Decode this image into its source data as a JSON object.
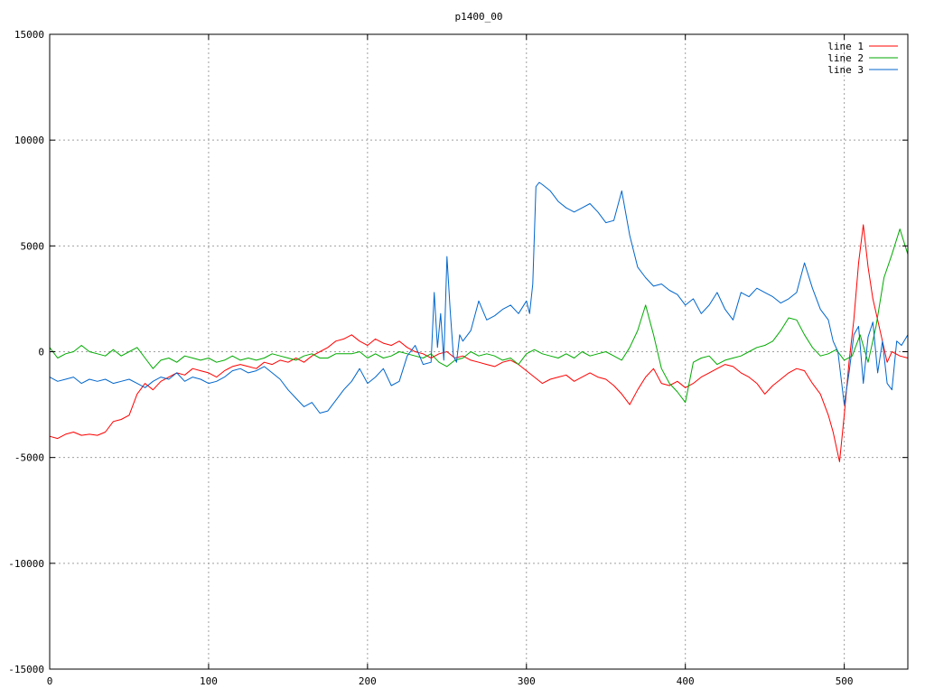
{
  "chart_data": {
    "type": "line",
    "title": "p1400_00",
    "xlabel": "",
    "ylabel": "",
    "xlim": [
      0,
      540
    ],
    "ylim": [
      -15000,
      15000
    ],
    "x_ticks": [
      0,
      100,
      200,
      300,
      400,
      500
    ],
    "y_ticks": [
      -15000,
      -10000,
      -5000,
      0,
      5000,
      10000,
      15000
    ],
    "grid": true,
    "legend_position": "top-right",
    "series": [
      {
        "name": "line 1",
        "color": "#ff0000",
        "x": [
          0,
          5,
          10,
          15,
          20,
          25,
          30,
          35,
          40,
          45,
          50,
          55,
          60,
          65,
          70,
          75,
          80,
          85,
          90,
          95,
          100,
          105,
          110,
          115,
          120,
          125,
          130,
          135,
          140,
          145,
          150,
          155,
          160,
          165,
          170,
          175,
          180,
          185,
          190,
          195,
          200,
          205,
          210,
          215,
          220,
          225,
          230,
          235,
          240,
          245,
          250,
          255,
          260,
          265,
          270,
          275,
          280,
          285,
          290,
          295,
          300,
          305,
          310,
          315,
          320,
          325,
          330,
          335,
          340,
          345,
          350,
          355,
          360,
          365,
          370,
          375,
          380,
          385,
          390,
          395,
          400,
          405,
          410,
          415,
          420,
          425,
          430,
          435,
          440,
          445,
          450,
          455,
          460,
          465,
          470,
          475,
          480,
          485,
          490,
          493,
          497,
          500,
          503,
          506,
          509,
          512,
          515,
          518,
          521,
          524,
          527,
          530,
          535,
          540
        ],
        "y": [
          -4000,
          -4100,
          -3900,
          -3800,
          -3950,
          -3900,
          -3950,
          -3800,
          -3300,
          -3200,
          -3000,
          -2000,
          -1500,
          -1800,
          -1400,
          -1200,
          -1000,
          -1100,
          -800,
          -900,
          -1000,
          -1200,
          -900,
          -700,
          -600,
          -700,
          -800,
          -500,
          -600,
          -400,
          -500,
          -300,
          -500,
          -200,
          0,
          200,
          500,
          600,
          800,
          500,
          300,
          600,
          400,
          300,
          500,
          200,
          0,
          -100,
          -300,
          -100,
          0,
          -300,
          -200,
          -400,
          -500,
          -600,
          -700,
          -500,
          -400,
          -600,
          -900,
          -1200,
          -1500,
          -1300,
          -1200,
          -1100,
          -1400,
          -1200,
          -1000,
          -1200,
          -1300,
          -1600,
          -2000,
          -2500,
          -1800,
          -1200,
          -800,
          -1500,
          -1600,
          -1400,
          -1700,
          -1500,
          -1200,
          -1000,
          -800,
          -600,
          -700,
          -1000,
          -1200,
          -1500,
          -2000,
          -1600,
          -1300,
          -1000,
          -800,
          -900,
          -1500,
          -2000,
          -3000,
          -3800,
          -5200,
          -3000,
          -500,
          1500,
          4200,
          6000,
          4000,
          2500,
          1500,
          500,
          -500,
          0,
          -200,
          -300
        ]
      },
      {
        "name": "line 2",
        "color": "#00aa00",
        "x": [
          0,
          5,
          10,
          15,
          20,
          25,
          30,
          35,
          40,
          45,
          50,
          55,
          60,
          65,
          70,
          75,
          80,
          85,
          90,
          95,
          100,
          105,
          110,
          115,
          120,
          125,
          130,
          135,
          140,
          145,
          150,
          155,
          160,
          165,
          170,
          175,
          180,
          185,
          190,
          195,
          200,
          205,
          210,
          215,
          220,
          225,
          230,
          235,
          240,
          245,
          250,
          255,
          260,
          265,
          270,
          275,
          280,
          285,
          290,
          295,
          300,
          305,
          310,
          315,
          320,
          325,
          330,
          335,
          340,
          345,
          350,
          355,
          360,
          365,
          370,
          375,
          380,
          385,
          390,
          395,
          400,
          405,
          410,
          415,
          420,
          425,
          430,
          435,
          440,
          445,
          450,
          455,
          460,
          465,
          470,
          475,
          480,
          485,
          490,
          495,
          500,
          505,
          510,
          515,
          520,
          525,
          530,
          535,
          540
        ],
        "y": [
          200,
          -300,
          -100,
          0,
          300,
          0,
          -100,
          -200,
          100,
          -200,
          0,
          200,
          -300,
          -800,
          -400,
          -300,
          -500,
          -200,
          -300,
          -400,
          -300,
          -500,
          -400,
          -200,
          -400,
          -300,
          -400,
          -300,
          -100,
          -200,
          -300,
          -400,
          -200,
          -100,
          -300,
          -300,
          -100,
          -100,
          -100,
          0,
          -300,
          -100,
          -300,
          -200,
          0,
          -100,
          -200,
          -300,
          -100,
          -500,
          -700,
          -400,
          -300,
          0,
          -200,
          -100,
          -200,
          -400,
          -300,
          -600,
          -100,
          100,
          -100,
          -200,
          -300,
          -100,
          -300,
          0,
          -200,
          -100,
          0,
          -200,
          -400,
          200,
          1000,
          2200,
          800,
          -800,
          -1500,
          -1900,
          -2400,
          -500,
          -300,
          -200,
          -600,
          -400,
          -300,
          -200,
          0,
          200,
          300,
          500,
          1000,
          1600,
          1500,
          800,
          200,
          -200,
          -100,
          100,
          -400,
          -200,
          800,
          -500,
          1200,
          3500,
          4600,
          5800,
          4600
        ]
      },
      {
        "name": "line 3",
        "color": "#0066cc",
        "x": [
          0,
          5,
          10,
          15,
          20,
          25,
          30,
          35,
          40,
          45,
          50,
          55,
          60,
          65,
          70,
          75,
          80,
          85,
          90,
          95,
          100,
          105,
          110,
          115,
          120,
          125,
          130,
          135,
          140,
          145,
          150,
          155,
          160,
          165,
          170,
          175,
          180,
          185,
          190,
          195,
          200,
          205,
          210,
          215,
          220,
          225,
          230,
          235,
          240,
          242,
          244,
          246,
          248,
          250,
          252,
          254,
          256,
          258,
          260,
          265,
          270,
          275,
          280,
          285,
          290,
          295,
          300,
          302,
          304,
          306,
          308,
          310,
          315,
          320,
          325,
          330,
          335,
          340,
          345,
          350,
          355,
          360,
          365,
          370,
          375,
          380,
          385,
          390,
          395,
          400,
          405,
          410,
          415,
          420,
          425,
          430,
          435,
          440,
          445,
          450,
          455,
          460,
          465,
          470,
          475,
          480,
          485,
          490,
          493,
          496,
          500,
          503,
          506,
          509,
          512,
          515,
          518,
          521,
          524,
          527,
          530,
          533,
          536,
          540
        ],
        "y": [
          -1200,
          -1400,
          -1300,
          -1200,
          -1500,
          -1300,
          -1400,
          -1300,
          -1500,
          -1400,
          -1300,
          -1500,
          -1700,
          -1400,
          -1200,
          -1300,
          -1000,
          -1400,
          -1200,
          -1300,
          -1500,
          -1400,
          -1200,
          -900,
          -800,
          -1000,
          -900,
          -700,
          -1000,
          -1300,
          -1800,
          -2200,
          -2600,
          -2400,
          -2900,
          -2800,
          -2300,
          -1800,
          -1400,
          -800,
          -1500,
          -1200,
          -800,
          -1600,
          -1400,
          -200,
          300,
          -600,
          -500,
          2800,
          200,
          1800,
          -400,
          4500,
          2000,
          -200,
          -500,
          800,
          500,
          1000,
          2400,
          1500,
          1700,
          2000,
          2200,
          1800,
          2400,
          1800,
          3200,
          7800,
          8000,
          7900,
          7600,
          7100,
          6800,
          6600,
          6800,
          7000,
          6600,
          6100,
          6200,
          7600,
          5500,
          4000,
          3500,
          3100,
          3200,
          2900,
          2700,
          2200,
          2500,
          1800,
          2200,
          2800,
          2000,
          1500,
          2800,
          2600,
          3000,
          2800,
          2600,
          2300,
          2500,
          2800,
          4200,
          3000,
          2000,
          1500,
          500,
          0,
          -2500,
          -1000,
          800,
          1200,
          -1500,
          700,
          1400,
          -1000,
          500,
          -1500,
          -1800,
          500,
          300,
          800
        ]
      }
    ]
  }
}
